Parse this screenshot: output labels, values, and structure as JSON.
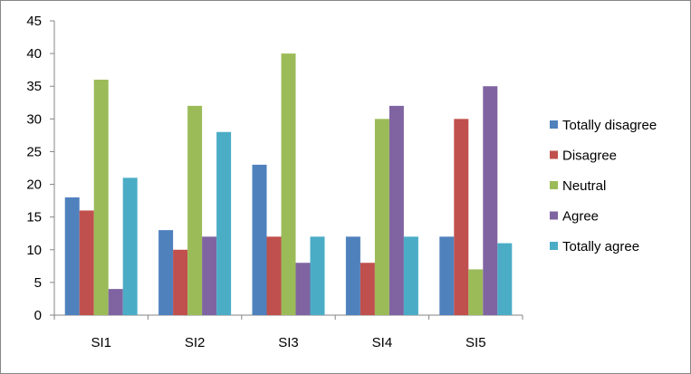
{
  "chart_data": {
    "type": "bar",
    "title": "",
    "xlabel": "",
    "ylabel": "",
    "categories": [
      "SI1",
      "SI2",
      "SI3",
      "SI4",
      "SI5"
    ],
    "ylim": [
      0,
      45
    ],
    "yticks": [
      0,
      5,
      10,
      15,
      20,
      25,
      30,
      35,
      40,
      45
    ],
    "grid": false,
    "legend_position": "right",
    "series": [
      {
        "name": "Totally disagree",
        "color": "#4F81BD",
        "values": [
          18,
          13,
          23,
          12,
          12
        ]
      },
      {
        "name": "Disagree",
        "color": "#C0504D",
        "values": [
          16,
          10,
          12,
          8,
          30
        ]
      },
      {
        "name": "Neutral",
        "color": "#9BBB59",
        "values": [
          36,
          32,
          40,
          30,
          7
        ]
      },
      {
        "name": "Agree",
        "color": "#8064A2",
        "values": [
          4,
          12,
          8,
          32,
          35
        ]
      },
      {
        "name": "Totally agree",
        "color": "#4BACC6",
        "values": [
          21,
          28,
          12,
          12,
          11
        ]
      }
    ]
  }
}
